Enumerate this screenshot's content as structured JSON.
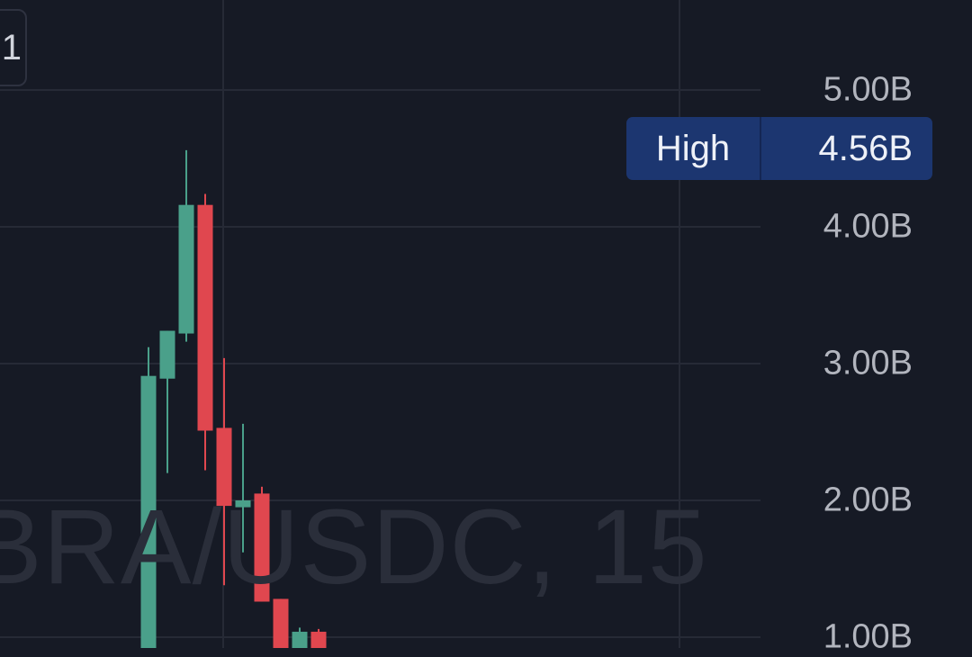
{
  "toolbar": {
    "interval_label": "1"
  },
  "watermark": "BRA/USDC, 15",
  "high_marker": {
    "label": "High",
    "value": "4.56B"
  },
  "colors": {
    "background": "#161a25",
    "up": "#4aa08a",
    "down": "#e0474f",
    "grid": "#262a36",
    "badge": "#1c3670"
  },
  "chart_data": {
    "type": "candlestick",
    "title": "",
    "xlabel": "",
    "ylabel": "",
    "ylim": [
      0.87,
      5.39
    ],
    "grid": true,
    "yticks": [
      {
        "value": 5,
        "label": "5.00B"
      },
      {
        "value": 4,
        "label": "4.00B"
      },
      {
        "value": 3,
        "label": "3.00B"
      },
      {
        "value": 2,
        "label": "2.00B"
      },
      {
        "value": 1,
        "label": "1.00B"
      }
    ],
    "candles": [
      {
        "open": 0.8,
        "high": 3.12,
        "low": 0.8,
        "close": 2.91
      },
      {
        "open": 2.89,
        "high": 3.24,
        "low": 2.2,
        "close": 3.24
      },
      {
        "open": 3.22,
        "high": 4.56,
        "low": 3.16,
        "close": 4.16
      },
      {
        "open": 4.16,
        "high": 4.24,
        "low": 2.22,
        "close": 2.51
      },
      {
        "open": 2.53,
        "high": 3.04,
        "low": 1.38,
        "close": 1.96
      },
      {
        "open": 1.95,
        "high": 2.56,
        "low": 1.62,
        "close": 2.0
      },
      {
        "open": 2.05,
        "high": 2.1,
        "low": 1.26,
        "close": 1.26
      },
      {
        "open": 1.28,
        "high": 1.28,
        "low": 0.8,
        "close": 0.9
      },
      {
        "open": 0.9,
        "high": 1.07,
        "low": 0.85,
        "close": 1.04
      },
      {
        "open": 1.04,
        "high": 1.06,
        "low": 0.85,
        "close": 0.9
      }
    ]
  }
}
